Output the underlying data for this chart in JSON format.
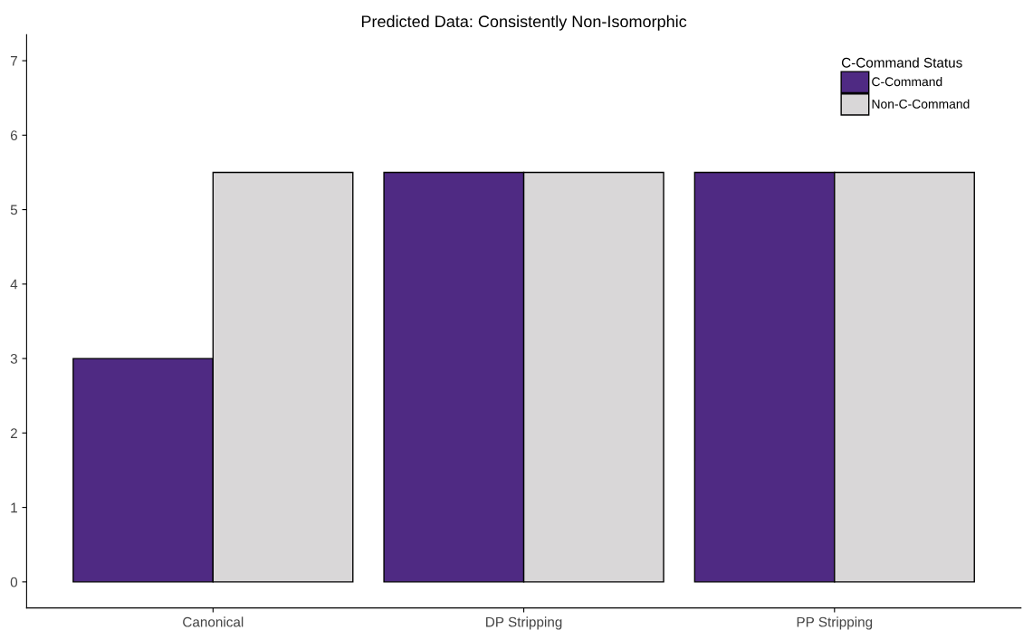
{
  "chart_data": {
    "type": "bar",
    "title": "Predicted Data: Consistently Non-Isomorphic",
    "categories": [
      "Canonical",
      "DP Stripping",
      "PP Stripping"
    ],
    "series": [
      {
        "name": "C-Command",
        "color": "#4f2a83",
        "values": [
          3,
          5.5,
          5.5
        ]
      },
      {
        "name": "Non-C-Command",
        "color": "#d9d7d8",
        "values": [
          5.5,
          5.5,
          5.5
        ]
      }
    ],
    "legend_title": "C-Command Status",
    "legend": "top right",
    "ylim": [
      -0.35,
      7.35
    ],
    "yticks": [
      0,
      1,
      2,
      3,
      4,
      5,
      6,
      7
    ],
    "grid": false
  }
}
